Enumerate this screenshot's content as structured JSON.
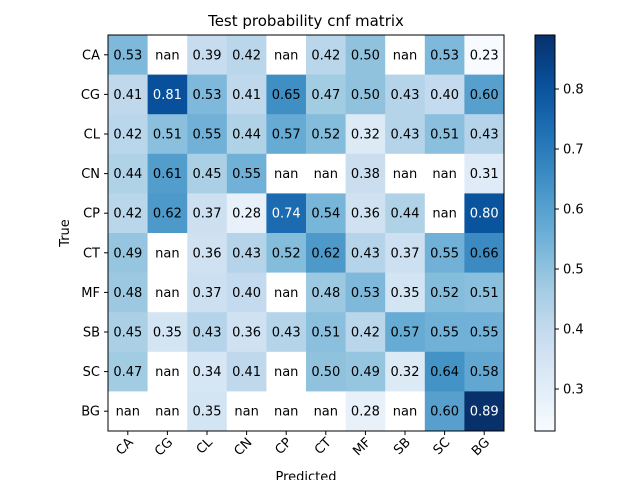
{
  "chart_data": {
    "type": "heatmap",
    "title": "Test probability cnf matrix",
    "xlabel": "Predicted",
    "ylabel": "True",
    "x_categories": [
      "CA",
      "CG",
      "CL",
      "CN",
      "CP",
      "CT",
      "MF",
      "SB",
      "SC",
      "BG"
    ],
    "y_categories": [
      "CA",
      "CG",
      "CL",
      "CN",
      "CP",
      "CT",
      "MF",
      "SB",
      "SC",
      "BG"
    ],
    "cells": [
      [
        "0.53",
        "nan",
        "0.39",
        "0.42",
        "nan",
        "0.42",
        "0.50",
        "nan",
        "0.53",
        "0.23"
      ],
      [
        "0.41",
        "0.81",
        "0.53",
        "0.41",
        "0.65",
        "0.47",
        "0.50",
        "0.43",
        "0.40",
        "0.60"
      ],
      [
        "0.42",
        "0.51",
        "0.55",
        "0.44",
        "0.57",
        "0.52",
        "0.32",
        "0.43",
        "0.51",
        "0.43"
      ],
      [
        "0.44",
        "0.61",
        "0.45",
        "0.55",
        "nan",
        "nan",
        "0.38",
        "nan",
        "nan",
        "0.31"
      ],
      [
        "0.42",
        "0.62",
        "0.37",
        "0.28",
        "0.74",
        "0.54",
        "0.36",
        "0.44",
        "nan",
        "0.80"
      ],
      [
        "0.49",
        "nan",
        "0.36",
        "0.43",
        "0.52",
        "0.62",
        "0.43",
        "0.37",
        "0.55",
        "0.66"
      ],
      [
        "0.48",
        "nan",
        "0.37",
        "0.40",
        "nan",
        "0.48",
        "0.53",
        "0.35",
        "0.52",
        "0.51"
      ],
      [
        "0.45",
        "0.35",
        "0.43",
        "0.36",
        "0.43",
        "0.51",
        "0.42",
        "0.57",
        "0.55",
        "0.55"
      ],
      [
        "0.47",
        "nan",
        "0.34",
        "0.41",
        "nan",
        "0.50",
        "0.49",
        "0.32",
        "0.64",
        "0.58"
      ],
      [
        "nan",
        "nan",
        "0.35",
        "nan",
        "nan",
        "nan",
        "0.28",
        "nan",
        "0.60",
        "0.89"
      ]
    ],
    "colorbar": {
      "min": 0.23,
      "max": 0.89,
      "ticks": [
        0.3,
        0.4,
        0.5,
        0.6,
        0.7,
        0.8
      ],
      "tick_labels": [
        "0.3",
        "0.4",
        "0.5",
        "0.6",
        "0.7",
        "0.8"
      ],
      "colormap": "Blues"
    },
    "nan_color": "#ffffff",
    "grid": false
  }
}
